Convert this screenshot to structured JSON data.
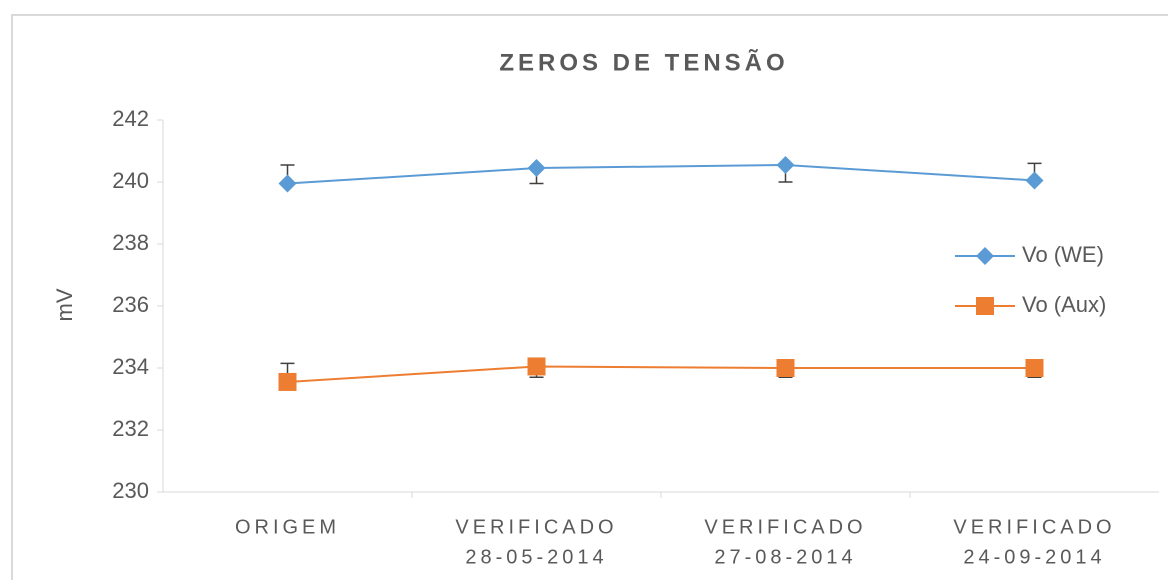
{
  "chart_data": {
    "type": "line",
    "title": "ZEROS DE TENSÃO",
    "y_label": "mV",
    "categories": [
      [
        "ORIGEM"
      ],
      [
        "VERIFICADO",
        "28-05-2014"
      ],
      [
        "VERIFICADO",
        "27-08-2014"
      ],
      [
        "VERIFICADO",
        "24-09-2014"
      ]
    ],
    "series": [
      {
        "name": "Vo (WE)",
        "color": "#5b9bd5",
        "marker": "diamond",
        "values": [
          239.95,
          240.45,
          240.55,
          240.05
        ],
        "error_plus": [
          0.6,
          0,
          0,
          0.55
        ],
        "error_minus": [
          0,
          0.5,
          0.55,
          0
        ]
      },
      {
        "name": "Vo (Aux)",
        "color": "#ed7d31",
        "marker": "square",
        "values": [
          233.55,
          234.05,
          234.0,
          234.0
        ],
        "error_plus": [
          0.6,
          0,
          0,
          0
        ],
        "error_minus": [
          0,
          0.35,
          0.3,
          0.3
        ]
      }
    ],
    "ylim": [
      230,
      242
    ],
    "yticks": [
      230,
      232,
      234,
      236,
      238,
      240,
      242
    ],
    "grid": false,
    "legend": "right"
  }
}
